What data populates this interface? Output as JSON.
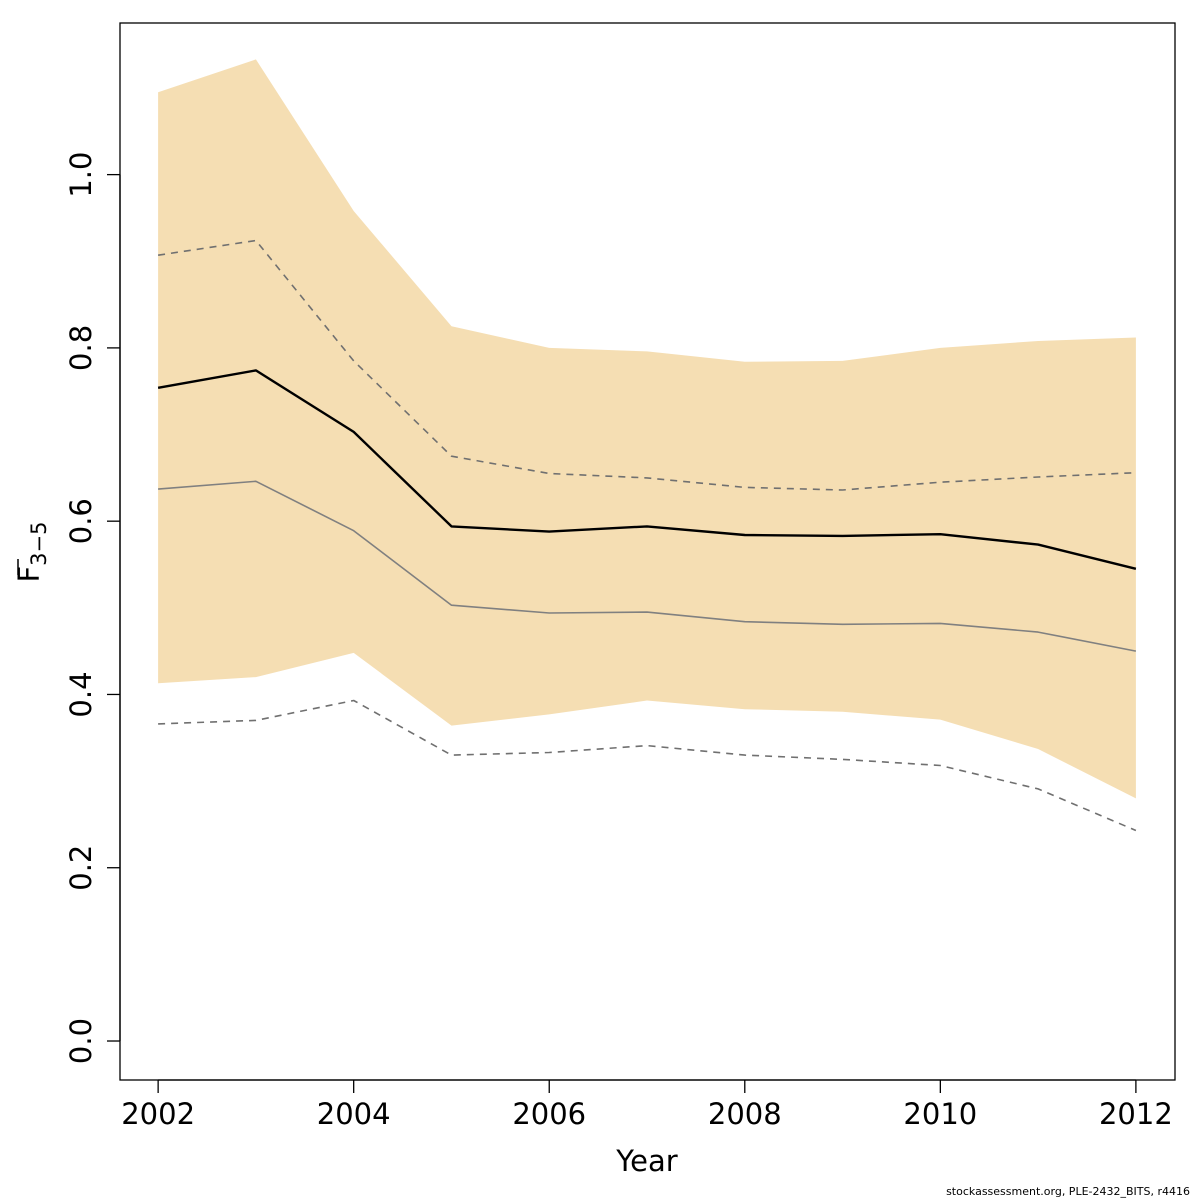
{
  "chart_data": {
    "type": "line",
    "x": [
      2002,
      2003,
      2004,
      2005,
      2006,
      2007,
      2008,
      2009,
      2010,
      2011,
      2012
    ],
    "xlabel": "Year",
    "ylabel_main": "F",
    "ylabel_sub": "3−5",
    "xlim": [
      2001.61,
      2012.4
    ],
    "ylim": [
      -0.045,
      1.175
    ],
    "xticks": [
      2002,
      2004,
      2006,
      2008,
      2010,
      2012
    ],
    "xtick_labels": [
      "2002",
      "2004",
      "2006",
      "2008",
      "2010",
      "2012"
    ],
    "yticks": [
      0.0,
      0.2,
      0.4,
      0.6,
      0.8,
      1.0
    ],
    "ytick_labels": [
      "0.0",
      "0.2",
      "0.4",
      "0.6",
      "0.8",
      "1.0"
    ],
    "grid": false,
    "band": {
      "color": "#f5deb3",
      "upper": [
        1.095,
        1.133,
        0.958,
        0.825,
        0.8,
        0.796,
        0.784,
        0.785,
        0.8,
        0.808,
        0.812
      ],
      "lower": [
        0.413,
        0.42,
        0.448,
        0.364,
        0.377,
        0.393,
        0.383,
        0.38,
        0.371,
        0.337,
        0.28
      ]
    },
    "series": [
      {
        "values": [
          0.754,
          0.774,
          0.703,
          0.594,
          0.588,
          0.594,
          0.584,
          0.583,
          0.585,
          0.573,
          0.545
        ],
        "color": "#000000",
        "width": 2.4,
        "dash": ""
      },
      {
        "values": [
          0.637,
          0.646,
          0.589,
          0.503,
          0.494,
          0.495,
          0.484,
          0.481,
          0.482,
          0.472,
          0.45
        ],
        "color": "#808080",
        "width": 1.6,
        "dash": ""
      },
      {
        "values": [
          0.907,
          0.924,
          0.785,
          0.675,
          0.655,
          0.65,
          0.639,
          0.636,
          0.645,
          0.651,
          0.656
        ],
        "color": "#707070",
        "width": 1.6,
        "dash": "7,6"
      },
      {
        "values": [
          0.366,
          0.37,
          0.393,
          0.33,
          0.333,
          0.341,
          0.33,
          0.325,
          0.318,
          0.291,
          0.243
        ],
        "color": "#707070",
        "width": 1.6,
        "dash": "7,6"
      }
    ]
  },
  "footer": "stockassessment.org, PLE-2432_BITS, r4416"
}
